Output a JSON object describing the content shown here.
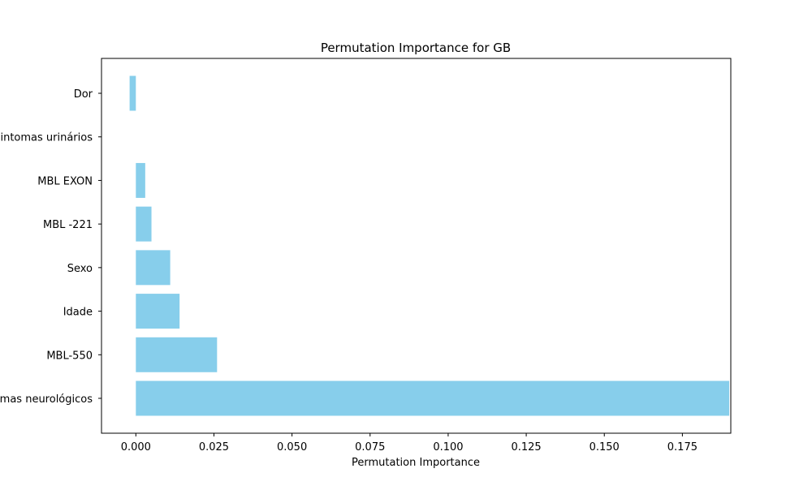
{
  "chart_data": {
    "type": "bar",
    "orientation": "horizontal",
    "title": "Permutation Importance for GB",
    "xlabel": "Permutation Importance",
    "ylabel": "",
    "categories": [
      "Sintomas neurológicos",
      "MBL-550",
      "Idade",
      "Sexo",
      "MBL -221",
      "MBL EXON",
      "Sintomas urinários",
      "Dor"
    ],
    "values": [
      0.19,
      0.026,
      0.014,
      0.011,
      0.005,
      0.003,
      0.0,
      -0.002
    ],
    "xlim": [
      -0.011,
      0.1905
    ],
    "xticks": [
      0.0,
      0.025,
      0.05,
      0.075,
      0.1,
      0.125,
      0.15,
      0.175
    ],
    "xtick_labels": [
      "0.000",
      "0.025",
      "0.050",
      "0.075",
      "0.100",
      "0.125",
      "0.150",
      "0.175"
    ],
    "bar_color": "#87ceeb",
    "grid": false,
    "legend": "none"
  }
}
